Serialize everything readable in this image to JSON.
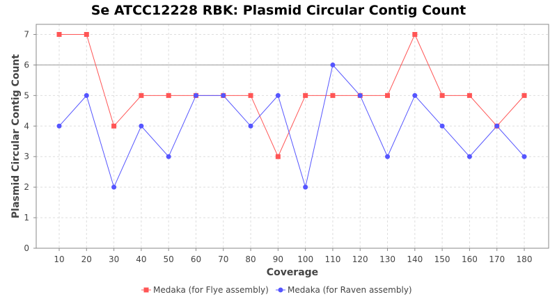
{
  "chart_data": {
    "type": "line",
    "title": "Se ATCC12228 RBK: Plasmid Circular Contig Count",
    "xlabel": "Coverage",
    "ylabel": "Plasmid Circular Contig Count",
    "categories": [
      "10",
      "20",
      "30",
      "40",
      "50",
      "60",
      "70",
      "80",
      "90",
      "100",
      "110",
      "120",
      "130",
      "140",
      "150",
      "160",
      "170",
      "180"
    ],
    "ylim": [
      0,
      7.33
    ],
    "yticks": [
      0,
      1,
      2,
      3,
      4,
      5,
      6,
      7
    ],
    "grid": true,
    "reference_line_y": 6,
    "legend_position": "bottom",
    "series": [
      {
        "name": "Medaka (for Flye assembly)",
        "color": "#ff5555",
        "marker": "square",
        "values": [
          7,
          7,
          4,
          5,
          5,
          5,
          5,
          5,
          3,
          5,
          5,
          5,
          5,
          7,
          5,
          5,
          4,
          5
        ]
      },
      {
        "name": "Medaka (for Raven assembly)",
        "color": "#5555ff",
        "marker": "circle",
        "values": [
          4,
          5,
          2,
          4,
          3,
          5,
          5,
          4,
          5,
          2,
          6,
          5,
          3,
          5,
          4,
          3,
          4,
          3
        ]
      }
    ]
  }
}
